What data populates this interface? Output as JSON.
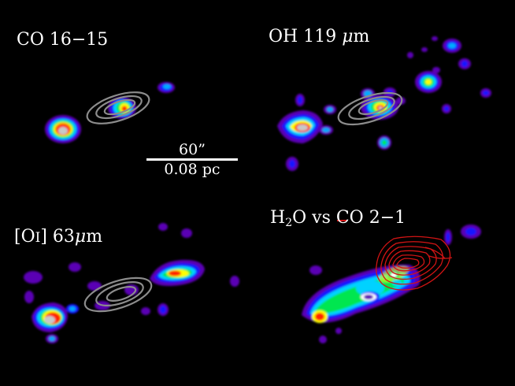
{
  "panels": {
    "co": {
      "label": "CO 16−15"
    },
    "oh": {
      "label_prefix": "OH 119",
      "label_unit_mu": "μ",
      "label_unit_m": "m"
    },
    "oi": {
      "label_open": "[O",
      "label_roman": "I",
      "label_close": "] 63",
      "label_unit_mu": "μ",
      "label_unit_m": "m"
    },
    "h2o": {
      "label_h": "H",
      "label_sub": "2",
      "label_rest": "O vs CO 2−1"
    }
  },
  "scalebar": {
    "angular": "60”",
    "physical": "0.08 pc"
  },
  "colors": {
    "background": "#000000",
    "contour_gray": "#8c8c8c",
    "contour_red": "#d21414"
  }
}
